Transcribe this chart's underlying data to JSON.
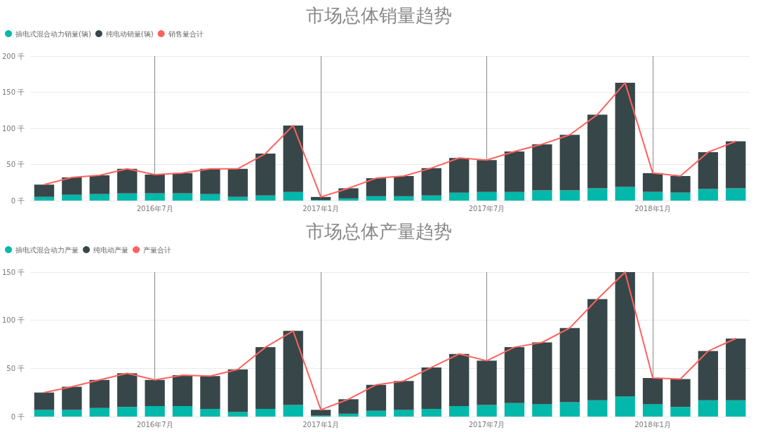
{
  "chart_data": [
    {
      "type": "bar",
      "title": "市场总体销量趋势",
      "stacked": true,
      "categories": [
        null,
        null,
        null,
        null,
        "2016年7月",
        null,
        null,
        null,
        null,
        null,
        "2017年1月",
        null,
        null,
        null,
        null,
        null,
        "2017年7月",
        null,
        null,
        null,
        null,
        null,
        "2018年1月",
        null,
        null,
        null
      ],
      "series": [
        {
          "name": "插电式混合动力销量(辆)",
          "color": "#01b8aa",
          "values": [
            5,
            8,
            9,
            10,
            10,
            10,
            9,
            5,
            7,
            12,
            1,
            3,
            6,
            6,
            7,
            11,
            12,
            12,
            14,
            14,
            17,
            19,
            12,
            11,
            16,
            17
          ]
        },
        {
          "name": "纯电动销量(辆)",
          "color": "#374649",
          "values": [
            17,
            24,
            26,
            34,
            26,
            28,
            35,
            39,
            58,
            92,
            4,
            14,
            25,
            28,
            38,
            48,
            44,
            56,
            64,
            77,
            102,
            144,
            26,
            23,
            51,
            65
          ]
        },
        {
          "name": "销售量合计",
          "type": "line",
          "color": "#fd625e",
          "values": [
            22,
            32,
            35,
            44,
            36,
            38,
            44,
            44,
            65,
            104,
            5,
            17,
            31,
            34,
            45,
            59,
            56,
            68,
            78,
            91,
            119,
            163,
            38,
            34,
            67,
            82
          ]
        }
      ],
      "ylim": [
        0,
        200
      ],
      "yticks": [
        {
          "value": 0,
          "label": "0 千"
        },
        {
          "value": 50,
          "label": "50 千"
        },
        {
          "value": 100,
          "label": "100 千"
        },
        {
          "value": 150,
          "label": "150 千"
        },
        {
          "value": 200,
          "label": "200 千"
        }
      ],
      "grid": true,
      "legend": "top left",
      "marker": "none"
    },
    {
      "type": "bar",
      "title": "市场总体产量趋势",
      "stacked": true,
      "categories": [
        null,
        null,
        null,
        null,
        "2016年7月",
        null,
        null,
        null,
        null,
        null,
        "2017年1月",
        null,
        null,
        null,
        null,
        null,
        "2017年7月",
        null,
        null,
        null,
        null,
        null,
        "2018年1月",
        null,
        null,
        null
      ],
      "series": [
        {
          "name": "插电式混合动力产量",
          "color": "#01b8aa",
          "values": [
            7,
            7,
            9,
            10,
            11,
            11,
            8,
            5,
            8,
            12,
            1,
            3,
            6,
            7,
            8,
            11,
            12,
            14,
            13,
            15,
            17,
            21,
            13,
            10,
            17,
            17
          ]
        },
        {
          "name": "纯电动产量",
          "color": "#374649",
          "values": [
            18,
            24,
            29,
            35,
            27,
            32,
            34,
            44,
            64,
            77,
            6,
            15,
            27,
            30,
            43,
            54,
            46,
            58,
            64,
            77,
            105,
            129,
            27,
            29,
            51,
            64
          ]
        },
        {
          "name": "产量合计",
          "type": "line",
          "color": "#fd625e",
          "values": [
            25,
            31,
            38,
            45,
            38,
            43,
            42,
            49,
            72,
            89,
            7,
            18,
            33,
            37,
            51,
            65,
            58,
            72,
            77,
            92,
            122,
            150,
            40,
            39,
            68,
            81
          ]
        }
      ],
      "ylim": [
        0,
        150
      ],
      "yticks": [
        {
          "value": 0,
          "label": "0 千"
        },
        {
          "value": 50,
          "label": "50 千"
        },
        {
          "value": 100,
          "label": "100 千"
        },
        {
          "value": 150,
          "label": "150 千"
        }
      ],
      "grid": true,
      "legend": "top left",
      "marker": "none"
    }
  ]
}
